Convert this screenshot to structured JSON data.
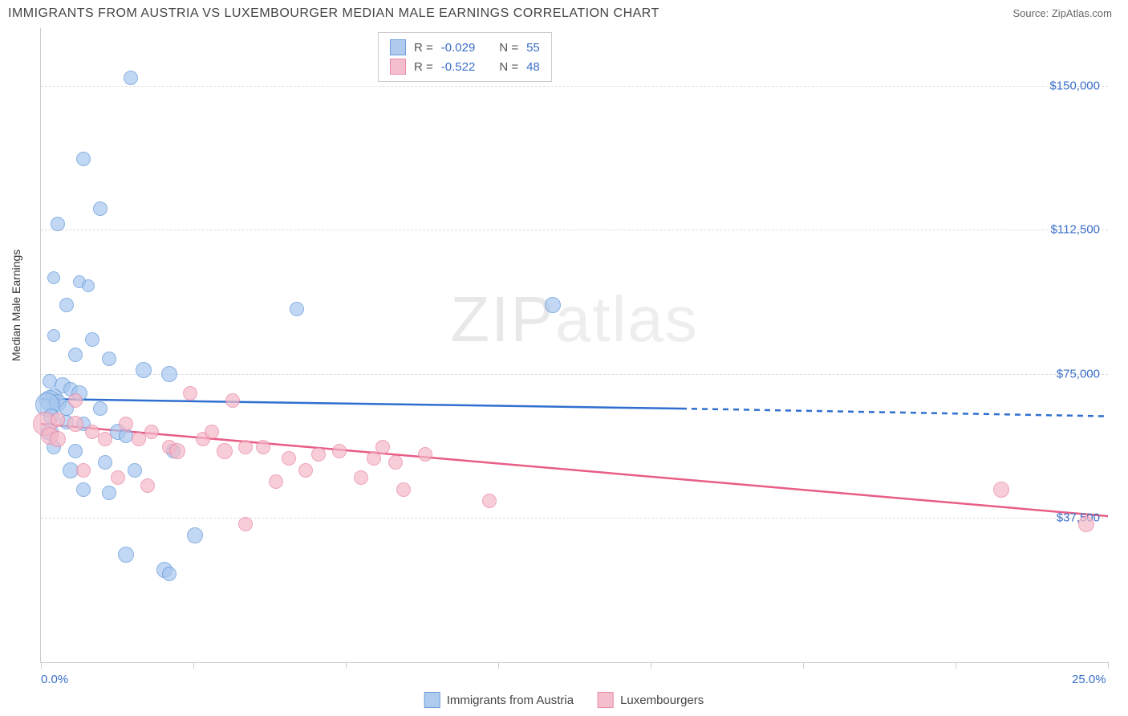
{
  "title": "IMMIGRANTS FROM AUSTRIA VS LUXEMBOURGER MEDIAN MALE EARNINGS CORRELATION CHART",
  "source_prefix": "Source: ",
  "source": "ZipAtlas.com",
  "ylabel": "Median Male Earnings",
  "watermark_zip": "ZIP",
  "watermark_atlas": "atlas",
  "chart": {
    "type": "scatter",
    "xlim": [
      0,
      25
    ],
    "ylim": [
      0,
      165000
    ],
    "background_color": "#ffffff",
    "grid_color": "#dddddd",
    "grid_style": "dashed",
    "axis_color": "#cccccc",
    "tick_label_color": "#3b6fc9",
    "tick_fontsize": 15,
    "label_fontsize": 14,
    "yticks": [
      {
        "value": 37500,
        "label": "$37,500"
      },
      {
        "value": 75000,
        "label": "$75,000"
      },
      {
        "value": 112500,
        "label": "$112,500"
      },
      {
        "value": 150000,
        "label": "$150,000"
      }
    ],
    "xticks_minor": [
      0,
      3.57,
      7.14,
      10.71,
      14.29,
      17.86,
      21.43,
      25
    ],
    "xtick_labels": [
      {
        "value": 0,
        "label": "0.0%"
      },
      {
        "value": 25,
        "label": "25.0%"
      }
    ],
    "marker_radius": 8,
    "marker_stroke_width": 1,
    "marker_fill_opacity": 0.35,
    "trend_line_width": 2.5
  },
  "series": [
    {
      "name": "Immigrants from Austria",
      "label": "Immigrants from Austria",
      "fill_color": "#a7c7ee",
      "stroke_color": "#5b93d8",
      "trend_color": "#2f6fd0",
      "R": "-0.029",
      "N": "55",
      "trend": {
        "x1": 0,
        "y1": 68500,
        "x2_solid": 15,
        "y2_solid": 66000,
        "x2_dash": 25,
        "y2_dash": 64000
      },
      "points": [
        {
          "x": 2.1,
          "y": 152000,
          "r": 8
        },
        {
          "x": 1.0,
          "y": 131000,
          "r": 8
        },
        {
          "x": 1.4,
          "y": 118000,
          "r": 8
        },
        {
          "x": 0.4,
          "y": 114000,
          "r": 8
        },
        {
          "x": 0.3,
          "y": 100000,
          "r": 7
        },
        {
          "x": 0.9,
          "y": 99000,
          "r": 7
        },
        {
          "x": 1.1,
          "y": 98000,
          "r": 7
        },
        {
          "x": 0.6,
          "y": 93000,
          "r": 8
        },
        {
          "x": 6.0,
          "y": 92000,
          "r": 8
        },
        {
          "x": 12.0,
          "y": 93000,
          "r": 9
        },
        {
          "x": 0.3,
          "y": 85000,
          "r": 7
        },
        {
          "x": 1.2,
          "y": 84000,
          "r": 8
        },
        {
          "x": 0.8,
          "y": 80000,
          "r": 8
        },
        {
          "x": 1.6,
          "y": 79000,
          "r": 8
        },
        {
          "x": 2.4,
          "y": 76000,
          "r": 9
        },
        {
          "x": 3.0,
          "y": 75000,
          "r": 9
        },
        {
          "x": 0.2,
          "y": 73000,
          "r": 8
        },
        {
          "x": 0.5,
          "y": 72000,
          "r": 9
        },
        {
          "x": 0.7,
          "y": 71000,
          "r": 8
        },
        {
          "x": 0.9,
          "y": 70000,
          "r": 9
        },
        {
          "x": 0.3,
          "y": 69000,
          "r": 10
        },
        {
          "x": 0.2,
          "y": 68000,
          "r": 12
        },
        {
          "x": 0.4,
          "y": 67500,
          "r": 10
        },
        {
          "x": 0.15,
          "y": 67000,
          "r": 14
        },
        {
          "x": 0.6,
          "y": 66000,
          "r": 8
        },
        {
          "x": 1.4,
          "y": 66000,
          "r": 8
        },
        {
          "x": 0.25,
          "y": 64000,
          "r": 9
        },
        {
          "x": 0.6,
          "y": 62500,
          "r": 8
        },
        {
          "x": 1.0,
          "y": 62000,
          "r": 8
        },
        {
          "x": 0.2,
          "y": 60000,
          "r": 10
        },
        {
          "x": 1.8,
          "y": 60000,
          "r": 9
        },
        {
          "x": 2.0,
          "y": 59000,
          "r": 8
        },
        {
          "x": 0.3,
          "y": 56000,
          "r": 8
        },
        {
          "x": 0.8,
          "y": 55000,
          "r": 8
        },
        {
          "x": 1.5,
          "y": 52000,
          "r": 8
        },
        {
          "x": 0.7,
          "y": 50000,
          "r": 9
        },
        {
          "x": 2.2,
          "y": 50000,
          "r": 8
        },
        {
          "x": 3.1,
          "y": 55000,
          "r": 8
        },
        {
          "x": 1.0,
          "y": 45000,
          "r": 8
        },
        {
          "x": 1.6,
          "y": 44000,
          "r": 8
        },
        {
          "x": 3.6,
          "y": 33000,
          "r": 9
        },
        {
          "x": 2.0,
          "y": 28000,
          "r": 9
        },
        {
          "x": 2.9,
          "y": 24000,
          "r": 9
        },
        {
          "x": 3.0,
          "y": 23000,
          "r": 8
        }
      ]
    },
    {
      "name": "Luxembourgers",
      "label": "Luxembourgers",
      "fill_color": "#f5b8c8",
      "stroke_color": "#e7809f",
      "trend_color": "#e85d85",
      "R": "-0.522",
      "N": "48",
      "trend": {
        "x1": 0,
        "y1": 62000,
        "x2_solid": 25,
        "y2_solid": 38000,
        "x2_dash": 25,
        "y2_dash": 38000
      },
      "points": [
        {
          "x": 0.1,
          "y": 62000,
          "r": 14
        },
        {
          "x": 0.2,
          "y": 59000,
          "r": 10
        },
        {
          "x": 0.4,
          "y": 58000,
          "r": 9
        },
        {
          "x": 0.8,
          "y": 62000,
          "r": 9
        },
        {
          "x": 1.2,
          "y": 60000,
          "r": 8
        },
        {
          "x": 1.5,
          "y": 58000,
          "r": 8
        },
        {
          "x": 0.4,
          "y": 63000,
          "r": 8
        },
        {
          "x": 2.0,
          "y": 62000,
          "r": 8
        },
        {
          "x": 2.3,
          "y": 58000,
          "r": 8
        },
        {
          "x": 2.6,
          "y": 60000,
          "r": 8
        },
        {
          "x": 3.0,
          "y": 56000,
          "r": 8
        },
        {
          "x": 3.5,
          "y": 70000,
          "r": 8
        },
        {
          "x": 3.2,
          "y": 55000,
          "r": 9
        },
        {
          "x": 3.8,
          "y": 58000,
          "r": 8
        },
        {
          "x": 4.3,
          "y": 55000,
          "r": 9
        },
        {
          "x": 4.0,
          "y": 60000,
          "r": 8
        },
        {
          "x": 4.8,
          "y": 56000,
          "r": 8
        },
        {
          "x": 4.5,
          "y": 68000,
          "r": 8
        },
        {
          "x": 5.2,
          "y": 56000,
          "r": 8
        },
        {
          "x": 5.8,
          "y": 53000,
          "r": 8
        },
        {
          "x": 6.2,
          "y": 50000,
          "r": 8
        },
        {
          "x": 6.5,
          "y": 54000,
          "r": 8
        },
        {
          "x": 5.5,
          "y": 47000,
          "r": 8
        },
        {
          "x": 7.0,
          "y": 55000,
          "r": 8
        },
        {
          "x": 7.8,
          "y": 53000,
          "r": 8
        },
        {
          "x": 7.5,
          "y": 48000,
          "r": 8
        },
        {
          "x": 8.3,
          "y": 52000,
          "r": 8
        },
        {
          "x": 8.0,
          "y": 56000,
          "r": 8
        },
        {
          "x": 9.0,
          "y": 54000,
          "r": 8
        },
        {
          "x": 8.5,
          "y": 45000,
          "r": 8
        },
        {
          "x": 10.5,
          "y": 42000,
          "r": 8
        },
        {
          "x": 1.0,
          "y": 50000,
          "r": 8
        },
        {
          "x": 1.8,
          "y": 48000,
          "r": 8
        },
        {
          "x": 2.5,
          "y": 46000,
          "r": 8
        },
        {
          "x": 0.8,
          "y": 68000,
          "r": 8
        },
        {
          "x": 4.8,
          "y": 36000,
          "r": 8
        },
        {
          "x": 22.5,
          "y": 45000,
          "r": 9
        },
        {
          "x": 24.5,
          "y": 36000,
          "r": 9
        }
      ]
    }
  ],
  "stats_legend": {
    "R_label": "R =",
    "N_label": "N ="
  }
}
